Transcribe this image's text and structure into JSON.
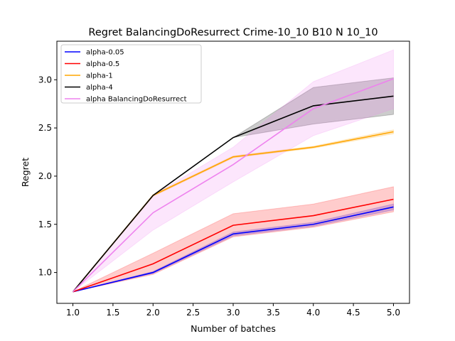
{
  "chart_data": {
    "type": "line",
    "title": "Regret BalancingDoResurrect Crime-10_10 B10 N 10_10",
    "xlabel": "Number of batches",
    "ylabel": "Regret",
    "xlim": [
      0.8,
      5.2
    ],
    "ylim": [
      0.68,
      3.4
    ],
    "xticks": [
      "1.0",
      "1.5",
      "2.0",
      "2.5",
      "3.0",
      "3.5",
      "4.0",
      "4.5",
      "5.0"
    ],
    "yticks": [
      "1.0",
      "1.5",
      "2.0",
      "2.5",
      "3.0"
    ],
    "grid": false,
    "legend_position": "top-left",
    "x": [
      1,
      2,
      3,
      4,
      5
    ],
    "series": [
      {
        "name": "alpha-0.05",
        "color": "#0000ff",
        "values": [
          0.8,
          1.0,
          1.4,
          1.5,
          1.68
        ],
        "lower": [
          0.8,
          0.99,
          1.38,
          1.48,
          1.65
        ],
        "upper": [
          0.8,
          1.01,
          1.42,
          1.52,
          1.71
        ]
      },
      {
        "name": "alpha-0.5",
        "color": "#ff0000",
        "values": [
          0.8,
          1.09,
          1.49,
          1.59,
          1.76
        ],
        "lower": [
          0.8,
          0.98,
          1.37,
          1.47,
          1.63
        ],
        "upper": [
          0.8,
          1.2,
          1.61,
          1.71,
          1.89
        ]
      },
      {
        "name": "alpha-1",
        "color": "#ffa500",
        "values": [
          0.8,
          1.8,
          2.2,
          2.3,
          2.46
        ],
        "lower": [
          0.8,
          1.79,
          2.19,
          2.29,
          2.44
        ],
        "upper": [
          0.8,
          1.81,
          2.21,
          2.31,
          2.48
        ]
      },
      {
        "name": "alpha-4",
        "color": "#000000",
        "values": [
          0.8,
          1.8,
          2.4,
          2.73,
          2.83
        ],
        "lower": [
          0.8,
          1.8,
          2.4,
          2.54,
          2.64
        ],
        "upper": [
          0.8,
          1.8,
          2.4,
          2.92,
          3.02
        ]
      },
      {
        "name": "alpha BalancingDoResurrect",
        "color": "#ee82ee",
        "values": [
          0.8,
          1.62,
          2.12,
          2.7,
          3.01
        ],
        "lower": [
          0.8,
          1.44,
          1.94,
          2.42,
          2.7
        ],
        "upper": [
          0.8,
          1.8,
          2.3,
          2.98,
          3.31
        ]
      }
    ]
  }
}
